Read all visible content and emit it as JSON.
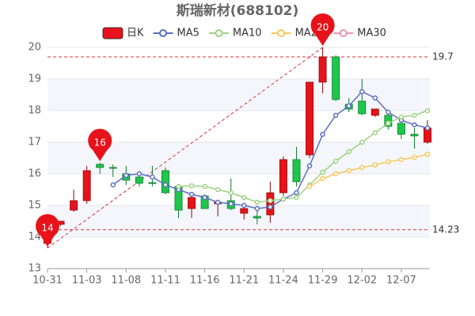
{
  "chart_data": {
    "type": "candlestick",
    "title": "斯瑞新材(688102)",
    "categories": [
      "10-31",
      null,
      null,
      "11-03",
      null,
      null,
      "11-08",
      null,
      null,
      "11-11",
      null,
      null,
      "11-16",
      null,
      null,
      "11-21",
      null,
      null,
      "11-24",
      null,
      null,
      "11-29",
      null,
      null,
      "12-02",
      null,
      null,
      "12-07",
      null,
      null
    ],
    "series": [
      {
        "name": "日K",
        "color": "#e8121b",
        "down_color": "#1ec64b",
        "open": [
          13.8,
          14.4,
          14.85,
          15.15,
          16.3,
          16.2,
          16.0,
          15.9,
          15.72,
          16.1,
          15.6,
          14.9,
          15.3,
          15.05,
          15.15,
          14.75,
          14.65,
          14.7,
          15.4,
          16.45,
          16.6,
          18.9,
          19.7,
          18.2,
          18.3,
          17.85,
          17.85,
          17.6,
          17.25,
          17.0
        ],
        "high": [
          14.3,
          14.5,
          15.5,
          16.25,
          16.35,
          16.3,
          16.25,
          16.0,
          16.25,
          16.2,
          15.65,
          15.3,
          15.35,
          15.15,
          15.85,
          14.95,
          14.9,
          15.75,
          16.55,
          16.85,
          18.9,
          20.0,
          19.75,
          18.4,
          19.0,
          18.05,
          17.9,
          17.6,
          17.45,
          17.7
        ],
        "low": [
          13.65,
          14.35,
          14.8,
          15.05,
          16.0,
          15.9,
          15.65,
          15.6,
          15.6,
          15.35,
          14.6,
          14.6,
          14.9,
          14.65,
          14.85,
          14.55,
          14.4,
          14.45,
          15.3,
          15.6,
          16.5,
          18.55,
          18.3,
          17.95,
          17.85,
          17.8,
          17.4,
          17.1,
          16.8,
          16.95
        ],
        "close": [
          14.2,
          14.5,
          15.15,
          16.1,
          16.2,
          16.18,
          15.8,
          15.7,
          15.7,
          15.4,
          14.85,
          15.25,
          14.9,
          15.1,
          14.9,
          14.9,
          14.6,
          15.4,
          16.45,
          15.75,
          18.9,
          19.7,
          18.35,
          18.05,
          17.9,
          18.05,
          17.5,
          17.25,
          17.2,
          17.45
        ]
      },
      {
        "name": "MA5",
        "color": "#5b6fc4",
        "values": [
          null,
          null,
          null,
          null,
          null,
          15.65,
          15.95,
          16.0,
          15.9,
          15.65,
          15.5,
          15.35,
          15.25,
          15.1,
          15.05,
          15.0,
          14.9,
          14.95,
          15.2,
          15.4,
          16.25,
          17.25,
          17.85,
          18.15,
          18.6,
          18.4,
          17.95,
          17.7,
          17.55,
          17.45
        ]
      },
      {
        "name": "MA10",
        "color": "#9cd383",
        "values": [
          null,
          null,
          null,
          null,
          null,
          null,
          null,
          null,
          null,
          null,
          15.6,
          15.62,
          15.6,
          15.5,
          15.4,
          15.25,
          15.1,
          15.15,
          15.2,
          15.25,
          15.65,
          16.05,
          16.4,
          16.7,
          17.0,
          17.3,
          17.6,
          17.8,
          17.85,
          18.0
        ]
      },
      {
        "name": "MA20",
        "color": "#f7c75c",
        "values": [
          null,
          null,
          null,
          null,
          null,
          null,
          null,
          null,
          null,
          null,
          null,
          null,
          null,
          null,
          null,
          null,
          null,
          null,
          null,
          null,
          15.6,
          15.85,
          16.0,
          16.1,
          16.2,
          16.28,
          16.38,
          16.45,
          16.52,
          16.62
        ]
      },
      {
        "name": "MA30",
        "color": "#e994b8",
        "values": [
          null,
          null,
          null,
          null,
          null,
          null,
          null,
          null,
          null,
          null,
          null,
          null,
          null,
          null,
          null,
          null,
          null,
          null,
          null,
          null,
          null,
          null,
          null,
          null,
          null,
          null,
          null,
          null,
          null,
          null
        ]
      }
    ],
    "ylim": [
      13,
      20
    ],
    "yticks": [
      13,
      14,
      15,
      16,
      17,
      18,
      19,
      20
    ],
    "grid": true,
    "hlines": [
      19.7,
      14.23
    ],
    "annotations": [
      {
        "text": "14",
        "index": 0,
        "value": 13.65
      },
      {
        "text": "16",
        "index": 4,
        "value": 16.35
      },
      {
        "text": "20",
        "index": 21,
        "value": 20.0
      }
    ]
  }
}
